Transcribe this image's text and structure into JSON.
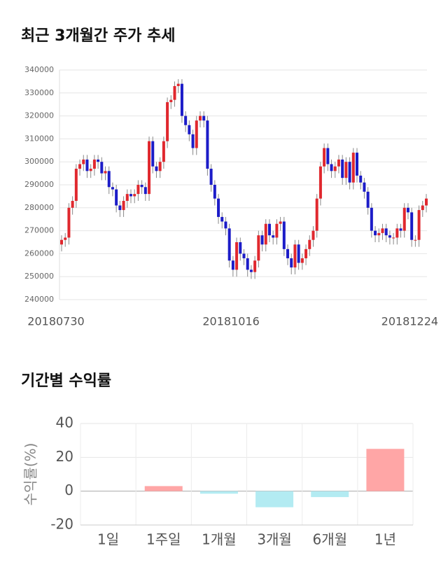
{
  "chart_data": [
    {
      "type": "candlestick",
      "title": "최근 3개월간 주가 추세",
      "categories": [
        "20180730",
        null,
        null,
        null,
        null,
        null,
        null,
        null,
        null,
        null,
        null,
        null,
        null,
        null,
        null,
        null,
        null,
        null,
        null,
        null,
        null,
        null,
        null,
        null,
        null,
        null,
        null,
        null,
        null,
        null,
        null,
        null,
        null,
        null,
        null,
        null,
        null,
        null,
        null,
        null,
        null,
        null,
        null,
        null,
        null,
        null,
        null,
        null,
        "20181016",
        null,
        null,
        null,
        null,
        null,
        null,
        null,
        null,
        null,
        null,
        null,
        null,
        null,
        null,
        null,
        null,
        null,
        null,
        null,
        null,
        null,
        null,
        null,
        null,
        null,
        null,
        null,
        null,
        null,
        null,
        null,
        null,
        null,
        null,
        null,
        null,
        null,
        null,
        null,
        null,
        null,
        null,
        null,
        null,
        null,
        null,
        null,
        null,
        "20181224",
        null,
        null,
        null
      ],
      "values": [
        [
          264000,
          268000,
          261000,
          266000
        ],
        [
          266000,
          269000,
          263000,
          267000
        ],
        [
          267000,
          282000,
          264000,
          280000
        ],
        [
          280000,
          285000,
          277000,
          283000
        ],
        [
          283000,
          299000,
          280000,
          297000
        ],
        [
          297000,
          301000,
          294000,
          299000
        ],
        [
          299000,
          303000,
          296000,
          301000
        ],
        [
          301000,
          303000,
          293000,
          296000
        ],
        [
          296000,
          299000,
          293000,
          297000
        ],
        [
          297000,
          303000,
          294000,
          301000
        ],
        [
          301000,
          303000,
          297000,
          300000
        ],
        [
          300000,
          302000,
          292000,
          295000
        ],
        [
          295000,
          298000,
          292000,
          296000
        ],
        [
          296000,
          298000,
          286000,
          289000
        ],
        [
          289000,
          291000,
          285000,
          288000
        ],
        [
          288000,
          290000,
          278000,
          281000
        ],
        [
          281000,
          283000,
          276000,
          279000
        ],
        [
          279000,
          285000,
          276000,
          283000
        ],
        [
          283000,
          288000,
          280000,
          286000
        ],
        [
          286000,
          288000,
          282000,
          285000
        ],
        [
          285000,
          288000,
          282000,
          286000
        ],
        [
          286000,
          292000,
          283000,
          290000
        ],
        [
          290000,
          292000,
          286000,
          289000
        ],
        [
          289000,
          291000,
          283000,
          286000
        ],
        [
          286000,
          311000,
          283000,
          309000
        ],
        [
          309000,
          311000,
          295000,
          298000
        ],
        [
          298000,
          300000,
          293000,
          296000
        ],
        [
          296000,
          302000,
          293000,
          300000
        ],
        [
          300000,
          311000,
          297000,
          309000
        ],
        [
          309000,
          328000,
          306000,
          326000
        ],
        [
          326000,
          329000,
          323000,
          327000
        ],
        [
          327000,
          335000,
          324000,
          333000
        ],
        [
          333000,
          336000,
          330000,
          334000
        ],
        [
          334000,
          336000,
          317000,
          320000
        ],
        [
          320000,
          322000,
          313000,
          316000
        ],
        [
          316000,
          318000,
          309000,
          312000
        ],
        [
          312000,
          314000,
          303000,
          306000
        ],
        [
          306000,
          320000,
          303000,
          318000
        ],
        [
          318000,
          322000,
          315000,
          320000
        ],
        [
          320000,
          322000,
          315000,
          318000
        ],
        [
          318000,
          320000,
          294000,
          297000
        ],
        [
          297000,
          299000,
          287000,
          290000
        ],
        [
          290000,
          292000,
          281000,
          284000
        ],
        [
          284000,
          286000,
          273000,
          276000
        ],
        [
          276000,
          278000,
          271000,
          274000
        ],
        [
          274000,
          276000,
          268000,
          271000
        ],
        [
          271000,
          273000,
          254000,
          257000
        ],
        [
          257000,
          259000,
          250000,
          253000
        ],
        [
          253000,
          267000,
          250000,
          265000
        ],
        [
          265000,
          267000,
          257000,
          260000
        ],
        [
          260000,
          262000,
          255000,
          258000
        ],
        [
          258000,
          260000,
          250000,
          253000
        ],
        [
          253000,
          255000,
          249000,
          252000
        ],
        [
          252000,
          259000,
          249000,
          257000
        ],
        [
          257000,
          270000,
          254000,
          268000
        ],
        [
          268000,
          270000,
          261000,
          264000
        ],
        [
          264000,
          275000,
          261000,
          273000
        ],
        [
          273000,
          275000,
          265000,
          268000
        ],
        [
          268000,
          270000,
          264000,
          267000
        ],
        [
          267000,
          275000,
          264000,
          273000
        ],
        [
          273000,
          276000,
          270000,
          274000
        ],
        [
          274000,
          276000,
          259000,
          262000
        ],
        [
          262000,
          264000,
          255000,
          258000
        ],
        [
          258000,
          260000,
          251000,
          254000
        ],
        [
          254000,
          266000,
          251000,
          264000
        ],
        [
          264000,
          266000,
          253000,
          256000
        ],
        [
          256000,
          260000,
          253000,
          258000
        ],
        [
          258000,
          264000,
          255000,
          262000
        ],
        [
          262000,
          268000,
          259000,
          266000
        ],
        [
          266000,
          272000,
          263000,
          270000
        ],
        [
          270000,
          286000,
          267000,
          284000
        ],
        [
          284000,
          300000,
          281000,
          298000
        ],
        [
          298000,
          308000,
          295000,
          306000
        ],
        [
          306000,
          308000,
          296000,
          299000
        ],
        [
          299000,
          301000,
          293000,
          296000
        ],
        [
          296000,
          300000,
          293000,
          298000
        ],
        [
          298000,
          303000,
          295000,
          301000
        ],
        [
          301000,
          303000,
          290000,
          293000
        ],
        [
          293000,
          302000,
          290000,
          300000
        ],
        [
          300000,
          302000,
          288000,
          291000
        ],
        [
          291000,
          306000,
          288000,
          304000
        ],
        [
          304000,
          306000,
          291000,
          294000
        ],
        [
          294000,
          296000,
          288000,
          291000
        ],
        [
          291000,
          293000,
          284000,
          287000
        ],
        [
          287000,
          289000,
          277000,
          280000
        ],
        [
          280000,
          282000,
          267000,
          270000
        ],
        [
          270000,
          272000,
          265000,
          268000
        ],
        [
          268000,
          271000,
          265000,
          269000
        ],
        [
          269000,
          273000,
          266000,
          271000
        ],
        [
          271000,
          273000,
          265000,
          268000
        ],
        [
          268000,
          270000,
          264000,
          267000
        ],
        [
          267000,
          269000,
          264000,
          267000
        ],
        [
          267000,
          273000,
          264000,
          271000
        ],
        [
          271000,
          273000,
          267000,
          270000
        ],
        [
          270000,
          282000,
          267000,
          280000
        ],
        [
          280000,
          282000,
          275000,
          278000
        ],
        [
          278000,
          280000,
          263000,
          266000
        ],
        [
          266000,
          268000,
          263000,
          266000
        ],
        [
          266000,
          281000,
          263000,
          279000
        ],
        [
          279000,
          283000,
          276000,
          281000
        ],
        [
          281000,
          286000,
          278000,
          284000
        ]
      ],
      "up_color": "#e0282e",
      "down_color": "#1c1cc8",
      "wick_color": "#888888",
      "ylim": [
        240000,
        340000
      ],
      "yticks": [
        240000,
        250000,
        260000,
        270000,
        280000,
        290000,
        300000,
        310000,
        320000,
        330000,
        340000
      ],
      "grid": true
    },
    {
      "type": "bar",
      "title": "기간별 수익률",
      "y_label": "수익률(%)",
      "categories": [
        "1일",
        "1주일",
        "1개월",
        "3개월",
        "6개월",
        "1년"
      ],
      "values": [
        0,
        3,
        -1.5,
        -9.5,
        -3.5,
        25
      ],
      "positive_color": "#ffa6a6",
      "negative_color": "#b3ebf2",
      "ylim": [
        -20,
        40
      ],
      "yticks": [
        -20,
        0,
        20,
        40
      ],
      "grid": true
    }
  ]
}
